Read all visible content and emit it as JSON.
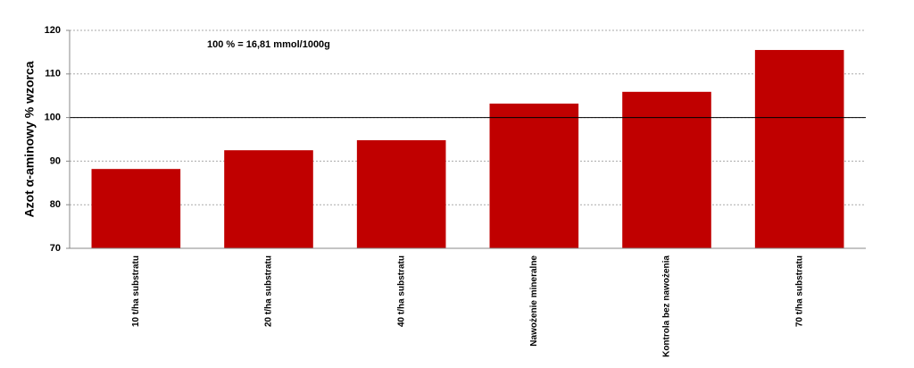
{
  "chart_data": {
    "type": "bar",
    "annotation": "100 % = 16,81 mmol/1000g",
    "y_label": "Azot α-aminowy % wzorca",
    "categories": [
      "10 t/ha substratu",
      "20 t/ha substratu",
      "40 t/ha substratu",
      "Nawożenie mineralne",
      "Kontrola bez nawożenia",
      "70 t/ha substratu"
    ],
    "values": [
      88.2,
      92.5,
      94.8,
      103.2,
      105.9,
      115.5
    ],
    "color": "#c00000",
    "ylim": [
      70,
      120
    ],
    "yticks": [
      70,
      80,
      90,
      100,
      110,
      120
    ],
    "grid": true,
    "reference_line": 100
  }
}
